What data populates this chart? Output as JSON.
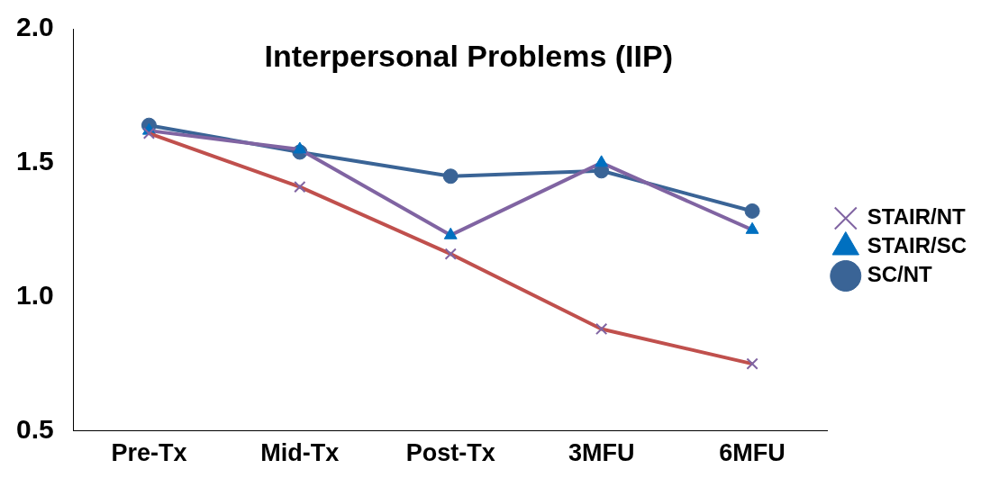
{
  "chart_data": {
    "type": "line",
    "title": "Interpersonal Problems (IIP)",
    "categories": [
      "Pre-Tx",
      "Mid-Tx",
      "Post-Tx",
      "3MFU",
      "6MFU"
    ],
    "series": [
      {
        "name": "STAIR/NT",
        "color": "#c0504d",
        "marker": "cross",
        "values": [
          1.61,
          1.41,
          1.16,
          0.88,
          0.75
        ]
      },
      {
        "name": "STAIR/SC",
        "color": "#8064a2",
        "marker": "triangle",
        "values": [
          1.62,
          1.55,
          1.23,
          1.5,
          1.25
        ]
      },
      {
        "name": "SC/NT",
        "color": "#3a6496",
        "marker": "circle",
        "values": [
          1.64,
          1.54,
          1.45,
          1.47,
          1.32
        ]
      }
    ],
    "ylim": [
      0.5,
      2.0
    ],
    "yticks": [
      {
        "value": 0.5,
        "label": "0.5"
      },
      {
        "value": 1.0,
        "label": "1.0"
      },
      {
        "value": 1.5,
        "label": "1.5"
      },
      {
        "value": 2.0,
        "label": "2.0"
      }
    ],
    "grid": false,
    "legend": "right",
    "line_style": "solid"
  }
}
